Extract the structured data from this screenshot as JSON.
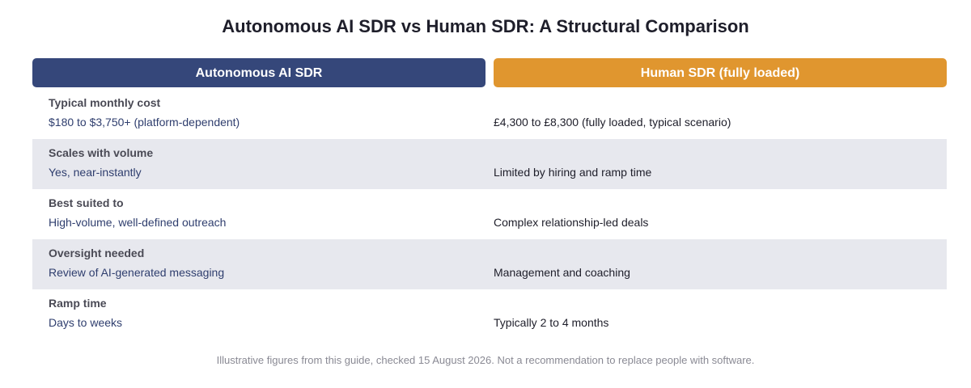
{
  "title": "Autonomous AI SDR vs Human SDR: A Structural Comparison",
  "columns": {
    "ai": "Autonomous AI SDR",
    "human": "Human SDR (fully loaded)"
  },
  "rows": [
    {
      "label": "Typical monthly cost",
      "ai": "$180 to $3,750+ (platform-dependent)",
      "human": "£4,300 to £8,300 (fully loaded, typical scenario)"
    },
    {
      "label": "Scales with volume",
      "ai": "Yes, near-instantly",
      "human": "Limited by hiring and ramp time"
    },
    {
      "label": "Best suited to",
      "ai": "High-volume, well-defined outreach",
      "human": "Complex relationship-led deals"
    },
    {
      "label": "Oversight needed",
      "ai": "Review of AI-generated messaging",
      "human": "Management and coaching"
    },
    {
      "label": "Ramp time",
      "ai": "Days to weeks",
      "human": "Typically 2 to 4 months"
    }
  ],
  "footnote": "Illustrative figures from this guide, checked 15 August 2026. Not a recommendation to replace people with software.",
  "colors": {
    "ai_header": "#35477a",
    "human_header": "#e0962f",
    "row_shade": "#e7e8ee"
  }
}
